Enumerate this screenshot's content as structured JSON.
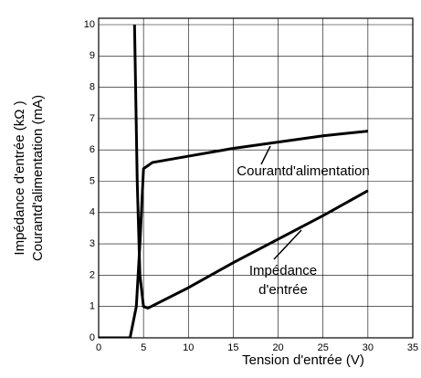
{
  "chart_data": {
    "type": "line",
    "xlabel": "Tension d'entrée (V)",
    "ylabel": [
      "Impédance d'entrée (kΩ )",
      "Courantd'alimentation (mA)"
    ],
    "xlim": [
      0,
      35
    ],
    "xticks": [
      0,
      5,
      10,
      15,
      20,
      25,
      30,
      35
    ],
    "ylim": [
      0,
      10
    ],
    "yticks": [
      0,
      1,
      2,
      3,
      4,
      5,
      6,
      7,
      8,
      9,
      10
    ],
    "grid": true,
    "series": [
      {
        "name": "Courantd'alimentation",
        "color": "#000000",
        "x": [
          0,
          3.5,
          4.2,
          4.6,
          5,
          6,
          10,
          15,
          20,
          25,
          30
        ],
        "values": [
          0,
          0,
          1,
          3,
          5.4,
          5.6,
          5.8,
          6.05,
          6.25,
          6.45,
          6.6
        ]
      },
      {
        "name": "Impédance d'entrée",
        "color": "#000000",
        "x": [
          4.0,
          4.3,
          4.6,
          5,
          5.5,
          10,
          15,
          20,
          25,
          30
        ],
        "values": [
          10,
          5,
          2,
          1,
          0.95,
          1.6,
          2.4,
          3.15,
          3.9,
          4.7
        ]
      }
    ],
    "annotations": [
      [
        "Courantd'alimentation"
      ],
      [
        "Impédance",
        "d'entrée"
      ]
    ]
  }
}
